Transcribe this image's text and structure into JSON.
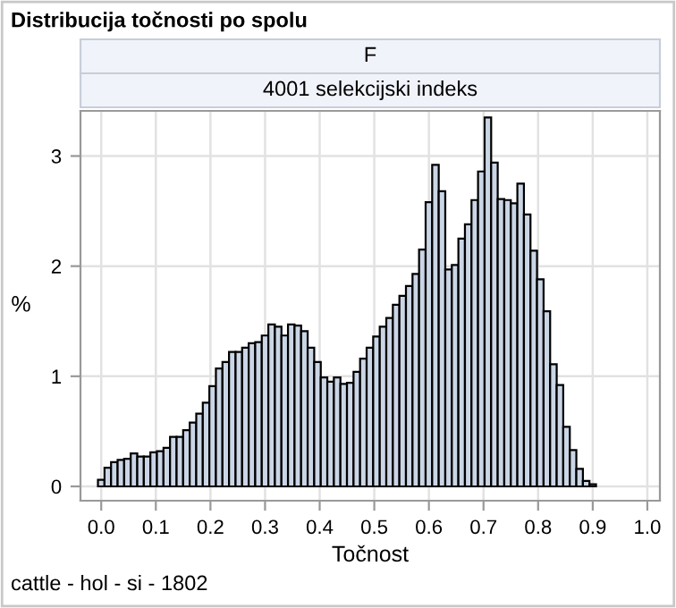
{
  "chart_data": {
    "type": "histogram",
    "title": "Distribucija točnosti po spolu",
    "subtitle": "F",
    "xlabel": "Točnost",
    "ylabel": "%",
    "annotations": [
      "4001 selekcijski indeks",
      "cattle - hol - si - 1802"
    ],
    "bins": [
      -0.006,
      0.006,
      0.018,
      0.03,
      0.042,
      0.054,
      0.066,
      0.078,
      0.09,
      0.102,
      0.114,
      0.126,
      0.138,
      0.15,
      0.162,
      0.174,
      0.186,
      0.198,
      0.21,
      0.222,
      0.234,
      0.246,
      0.258,
      0.27,
      0.282,
      0.294,
      0.306,
      0.318,
      0.33,
      0.342,
      0.354,
      0.366,
      0.378,
      0.39,
      0.402,
      0.414,
      0.426,
      0.438,
      0.45,
      0.462,
      0.474,
      0.486,
      0.498,
      0.51,
      0.522,
      0.534,
      0.546,
      0.558,
      0.57,
      0.582,
      0.594,
      0.606,
      0.618,
      0.63,
      0.642,
      0.654,
      0.666,
      0.678,
      0.69,
      0.702,
      0.714,
      0.726,
      0.738,
      0.75,
      0.762,
      0.774,
      0.786,
      0.798,
      0.81,
      0.822,
      0.834,
      0.846,
      0.858,
      0.87,
      0.882,
      0.894,
      0.906
    ],
    "values": [
      0.06,
      0.17,
      0.22,
      0.24,
      0.25,
      0.3,
      0.27,
      0.27,
      0.31,
      0.32,
      0.35,
      0.45,
      0.45,
      0.51,
      0.58,
      0.66,
      0.76,
      0.91,
      1.07,
      1.13,
      1.22,
      1.22,
      1.26,
      1.3,
      1.31,
      1.37,
      1.47,
      1.45,
      1.37,
      1.47,
      1.46,
      1.41,
      1.26,
      1.13,
      0.99,
      0.95,
      0.99,
      0.93,
      0.94,
      1.04,
      1.16,
      1.26,
      1.36,
      1.45,
      1.53,
      1.65,
      1.73,
      1.82,
      1.93,
      2.15,
      2.58,
      2.92,
      2.68,
      1.97,
      2.01,
      2.25,
      2.38,
      2.6,
      2.86,
      3.35,
      2.94,
      2.61,
      2.6,
      2.57,
      2.75,
      2.47,
      2.14,
      1.88,
      1.59,
      1.11,
      0.92,
      0.54,
      0.33,
      0.16,
      0.05,
      0.02
    ],
    "color": "#cad5e5",
    "xlim": [
      -0.038,
      1.023
    ],
    "ylim": [
      -0.13,
      3.41
    ],
    "xticks": [
      {
        "value": 0,
        "label": "0.0"
      },
      0.1,
      0.2,
      0.3,
      0.4,
      0.5,
      0.6,
      0.7,
      0.8,
      0.9,
      {
        "value": 1,
        "label": "1.0"
      }
    ],
    "yticks": [
      0,
      1,
      2,
      3
    ],
    "grid": true
  }
}
